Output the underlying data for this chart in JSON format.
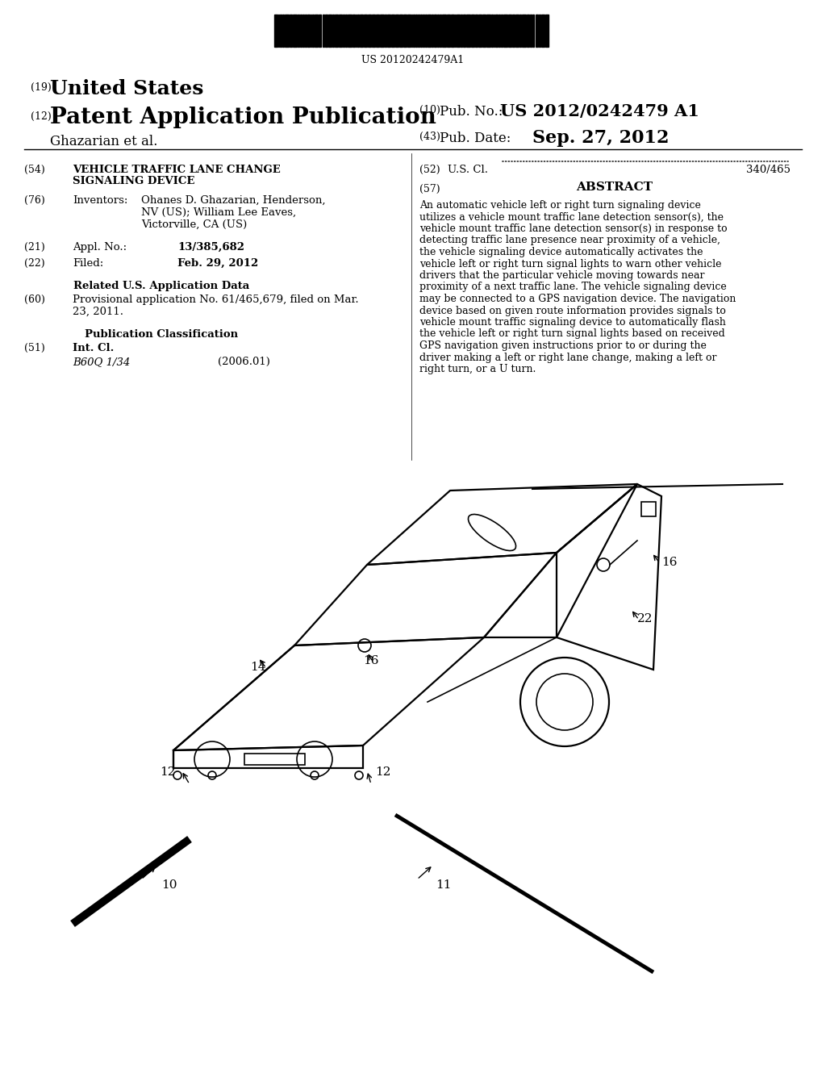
{
  "bg_color": "#ffffff",
  "barcode_text": "US 20120242479A1",
  "header": {
    "num19": "(19)",
    "united_states": "United States",
    "num12": "(12)",
    "patent_app_pub": "Patent Application Publication",
    "inventor_name": "Ghazarian et al.",
    "num10": "(10)",
    "pub_no_label": "Pub. No.:",
    "pub_no": "US 2012/0242479 A1",
    "num43": "(43)",
    "pub_date_label": "Pub. Date:",
    "pub_date": "Sep. 27, 2012"
  },
  "left_col": {
    "num54": "(54)",
    "title_line1": "VEHICLE TRAFFIC LANE CHANGE",
    "title_line2": "SIGNALING DEVICE",
    "num76": "(76)",
    "inventors_label": "Inventors:",
    "inventor1": "Ohanes D. Ghazarian, Henderson,",
    "inventor2": "NV (US); William Lee Eaves,",
    "inventor3": "Victorville, CA (US)",
    "num21": "(21)",
    "appl_label": "Appl. No.:",
    "appl_no": "13/385,682",
    "num22": "(22)",
    "filed_label": "Filed:",
    "filed_date": "Feb. 29, 2012",
    "related_header": "Related U.S. Application Data",
    "num60": "(60)",
    "provisional": "Provisional application No. 61/465,679, filed on Mar.",
    "provisional2": "23, 2011.",
    "pub_class_header": "Publication Classification",
    "num51": "(51)",
    "int_cl_label": "Int. Cl.",
    "int_cl": "B60Q 1/34",
    "int_cl_year": "(2006.01)"
  },
  "right_col": {
    "num52": "(52)",
    "us_cl_label": "U.S. Cl.",
    "us_cl_val": "340/465",
    "num57": "(57)",
    "abstract_label": "ABSTRACT",
    "abstract_text": "An automatic vehicle left or right turn signaling device utilizes a vehicle mount traffic lane detection sensor(s), the vehicle mount traffic lane detection sensor(s) in response to detecting traffic lane presence near proximity of a vehicle, the vehicle signaling device automatically activates the vehicle left or right turn signal lights to warn other vehicle drivers that the particular vehicle moving towards near proximity of a next traffic lane. The vehicle signaling device may be connected to a GPS navigation device. The navigation device based on given route information provides signals to vehicle mount traffic signaling device to automatically flash the vehicle left or right turn signal lights based on received GPS navigation given instructions prior to or during the driver making a left or right lane change, making a left or right turn, or a U turn."
  }
}
